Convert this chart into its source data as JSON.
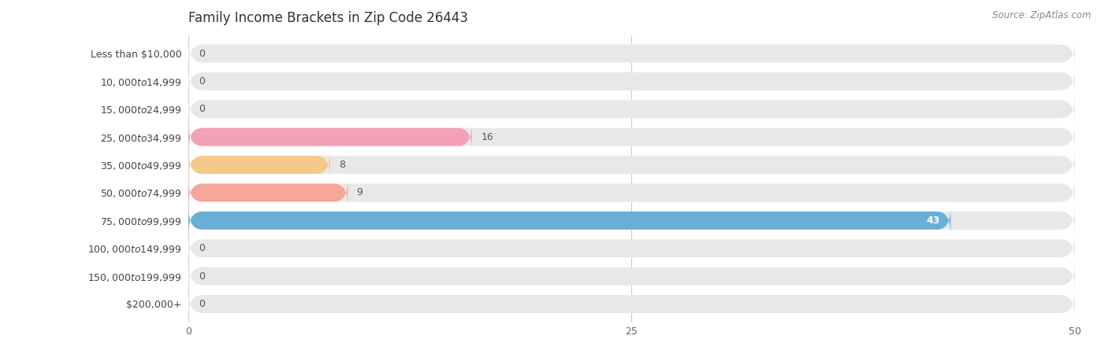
{
  "title": "Family Income Brackets in Zip Code 26443",
  "source_text": "Source: ZipAtlas.com",
  "categories": [
    "Less than $10,000",
    "$10,000 to $14,999",
    "$15,000 to $24,999",
    "$25,000 to $34,999",
    "$35,000 to $49,999",
    "$50,000 to $74,999",
    "$75,000 to $99,999",
    "$100,000 to $149,999",
    "$150,000 to $199,999",
    "$200,000+"
  ],
  "values": [
    0,
    0,
    0,
    16,
    8,
    9,
    43,
    0,
    0,
    0
  ],
  "bar_colors": [
    "#c9aed6",
    "#7ececa",
    "#b3b3e0",
    "#f4a0b5",
    "#f5c98a",
    "#f5a89a",
    "#6aaed6",
    "#c9aed6",
    "#7ececa",
    "#b3b3e0"
  ],
  "bg_bar_color": "#e8e8e8",
  "xlim": [
    0,
    50
  ],
  "xticks": [
    0,
    25,
    50
  ],
  "title_fontsize": 12,
  "label_fontsize": 9,
  "value_fontsize": 9,
  "background_color": "#ffffff"
}
